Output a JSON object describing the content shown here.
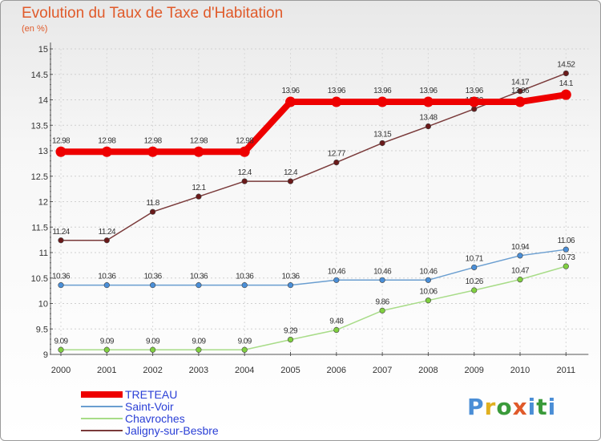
{
  "title": "Evolution du Taux de Taxe d'Habitation",
  "subtitle": "(en %)",
  "logo": {
    "letters": [
      {
        "ch": "P",
        "color": "#4a8ed6"
      },
      {
        "ch": "r",
        "color": "#e0b020"
      },
      {
        "ch": "o",
        "color": "#3a9a3a"
      },
      {
        "ch": "x",
        "color": "#e05a2a"
      },
      {
        "ch": "i",
        "color": "#4a8ed6"
      },
      {
        "ch": "t",
        "color": "#3a9a3a"
      },
      {
        "ch": "i",
        "color": "#4a8ed6"
      }
    ]
  },
  "chart_data": {
    "type": "line",
    "title": "Evolution du Taux de Taxe d'Habitation",
    "subtitle": "(en %)",
    "xlabel": "",
    "ylabel": "",
    "x": [
      "2000",
      "2001",
      "2002",
      "2003",
      "2004",
      "2005",
      "2006",
      "2007",
      "2008",
      "2009",
      "2010",
      "2011"
    ],
    "ylim": [
      9,
      15
    ],
    "yticks": [
      "9",
      "9.5",
      "10",
      "10.5",
      "11",
      "11.5",
      "12",
      "12.5",
      "13",
      "13.5",
      "14",
      "14.5",
      "15"
    ],
    "legend_position": "bottom-left",
    "series": [
      {
        "name": "TRETEAU",
        "color": "#ee0000",
        "marker_fill": "#ee0000",
        "thick": true,
        "values": [
          12.98,
          12.98,
          12.98,
          12.98,
          12.98,
          13.96,
          13.96,
          13.96,
          13.96,
          13.96,
          13.96,
          14.1
        ],
        "labels": [
          "12.98",
          "12.98",
          "12.98",
          "12.98",
          "12.98",
          "13.96",
          "13.96",
          "13.96",
          "13.96",
          "13.96",
          "13.96",
          "14.1"
        ]
      },
      {
        "name": "Saint-Voir",
        "color": "#6a9ed0",
        "marker_fill": "#4a8fd8",
        "thick": false,
        "values": [
          10.36,
          10.36,
          10.36,
          10.36,
          10.36,
          10.36,
          10.46,
          10.46,
          10.46,
          10.71,
          10.94,
          11.06
        ],
        "labels": [
          "10.36",
          "10.36",
          "10.36",
          "10.36",
          "10.36",
          "10.36",
          "10.46",
          "10.46",
          "10.46",
          "10.71",
          "10.94",
          "11.06"
        ]
      },
      {
        "name": "Chavroches",
        "color": "#a8dc88",
        "marker_fill": "#80d040",
        "thick": false,
        "values": [
          9.09,
          9.09,
          9.09,
          9.09,
          9.09,
          9.29,
          9.48,
          9.86,
          10.06,
          10.26,
          10.47,
          10.73
        ],
        "labels": [
          "9.09",
          "9.09",
          "9.09",
          "9.09",
          "9.09",
          "9.29",
          "9.48",
          "9.86",
          "10.06",
          "10.26",
          "10.47",
          "10.73"
        ]
      },
      {
        "name": "Jaligny-sur-Besbre",
        "color": "#7a3a3a",
        "marker_fill": "#6a1a1a",
        "thick": false,
        "values": [
          11.24,
          11.24,
          11.8,
          12.1,
          12.4,
          12.4,
          12.77,
          13.15,
          13.48,
          13.82,
          14.17,
          14.52
        ],
        "labels": [
          "11.24",
          "11.24",
          "11.8",
          "12.1",
          "12.4",
          "12.4",
          "12.77",
          "13.15",
          "13.48",
          "13.82",
          "14.17",
          "14.52"
        ]
      }
    ]
  }
}
